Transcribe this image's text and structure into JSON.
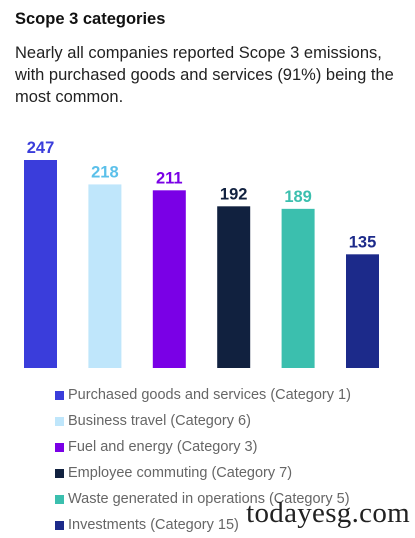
{
  "title": "Scope 3 categories",
  "subtitle": "Nearly all companies reported Scope 3 emissions, with purchased goods and services (91%) being the most common.",
  "watermark": "todayesg.com",
  "chart_data": {
    "type": "bar",
    "title": "Scope 3 categories",
    "categories": [
      "Purchased goods and services (Category 1)",
      "Business travel (Category 6)",
      "Fuel and energy (Category 3)",
      "Employee commuting (Category 7)",
      "Waste generated in operations (Category 5)",
      "Investments (Category 15)"
    ],
    "values": [
      247,
      218,
      211,
      192,
      189,
      135
    ],
    "colors": [
      "#3a3ddb",
      "#bfe6fb",
      "#7a00e6",
      "#11213f",
      "#3bbfae",
      "#1c2a8a"
    ],
    "label_colors": [
      "#3a3ddb",
      "#5bc0ea",
      "#7a00e6",
      "#11213f",
      "#3bbfae",
      "#1c2a8a"
    ],
    "xlabel": "",
    "ylabel": "",
    "ylim": [
      0,
      247
    ],
    "grid": false,
    "legend_position": "bottom"
  }
}
